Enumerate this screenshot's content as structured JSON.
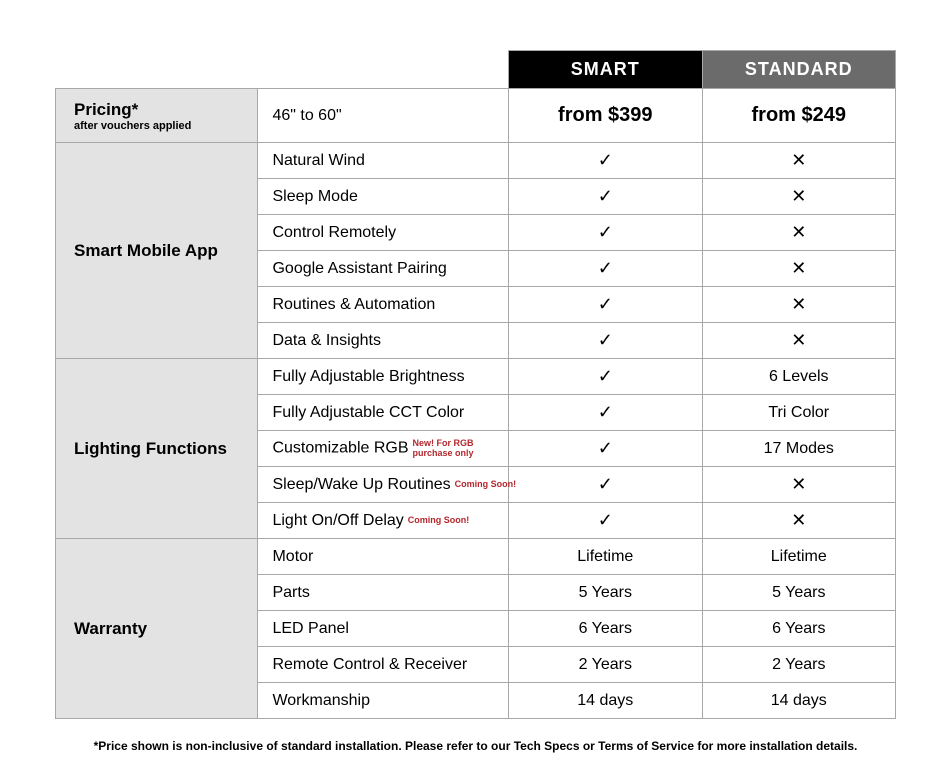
{
  "plans": {
    "smart": {
      "label": "SMART",
      "header_bg": "#000000"
    },
    "standard": {
      "label": "STANDARD",
      "header_bg": "#6b6b6b"
    }
  },
  "marks": {
    "check": "✓",
    "cross": "✕"
  },
  "colors": {
    "category_bg": "#e3e3e3",
    "border": "#a8a8a8",
    "badge_text": "#b3282d",
    "text": "#000000",
    "background": "#ffffff"
  },
  "pricing": {
    "title": "Pricing*",
    "subtitle": "after vouchers applied",
    "size_label": "46\" to 60\"",
    "smart_price": "from $399",
    "standard_price": "from $249"
  },
  "sections": [
    {
      "name": "Smart Mobile App",
      "rows": [
        {
          "label": "Natural Wind",
          "smart": "✓",
          "standard": "✕"
        },
        {
          "label": "Sleep Mode",
          "smart": "✓",
          "standard": "✕"
        },
        {
          "label": "Control Remotely",
          "smart": "✓",
          "standard": "✕"
        },
        {
          "label": "Google Assistant Pairing",
          "smart": "✓",
          "standard": "✕"
        },
        {
          "label": "Routines & Automation",
          "smart": "✓",
          "standard": "✕"
        },
        {
          "label": "Data & Insights",
          "smart": "✓",
          "standard": "✕"
        }
      ]
    },
    {
      "name": "Lighting Functions",
      "rows": [
        {
          "label": "Fully Adjustable Brightness",
          "smart": "✓",
          "standard": "6 Levels"
        },
        {
          "label": "Fully Adjustable CCT Color",
          "smart": "✓",
          "standard": "Tri Color"
        },
        {
          "label": "Customizable RGB",
          "badge": "New! For RGB purchase only",
          "smart": "✓",
          "standard": "17 Modes"
        },
        {
          "label": "Sleep/Wake Up Routines",
          "badge": "Coming Soon!",
          "smart": "✓",
          "standard": "✕"
        },
        {
          "label": "Light On/Off Delay",
          "badge": "Coming Soon!",
          "smart": "✓",
          "standard": "✕"
        }
      ]
    },
    {
      "name": "Warranty",
      "rows": [
        {
          "label": "Motor",
          "smart": "Lifetime",
          "standard": "Lifetime"
        },
        {
          "label": "Parts",
          "smart": "5 Years",
          "standard": "5 Years"
        },
        {
          "label": "LED Panel",
          "smart": "6 Years",
          "standard": "6 Years"
        },
        {
          "label": "Remote Control & Receiver",
          "smart": "2 Years",
          "standard": "2 Years"
        },
        {
          "label": "Workmanship",
          "smart": "14 days",
          "standard": "14 days"
        }
      ]
    }
  ],
  "footnote": "*Price shown is non-inclusive of standard installation. Please refer to our Tech Specs or Terms of Service for more installation details."
}
